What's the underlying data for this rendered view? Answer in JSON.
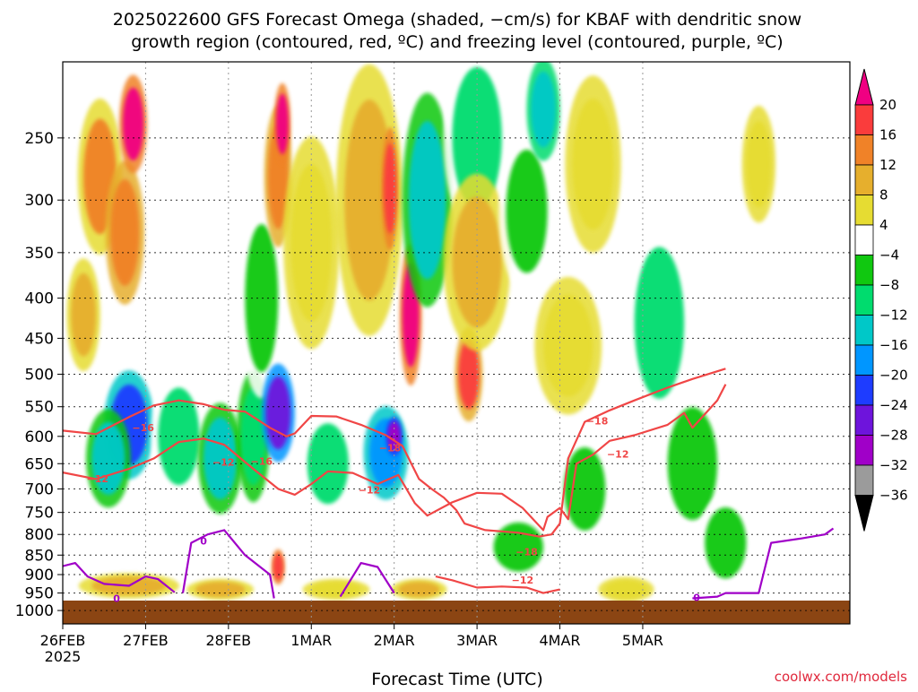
{
  "title_line1": "2025022600 GFS Forecast Omega (shaded, −cm/s) for KBAF with dendritic snow",
  "title_line2": "growth region (contoured, red, ºC) and freezing level (contoured, purple, ºC)",
  "credit": "coolwx.com/models",
  "chart_data": {
    "type": "heatmap",
    "xlabel": "Forecast Time (UTC)",
    "ylabel": "",
    "y_scale": "pressure (log), inverted",
    "ylim": [
      1040,
      200
    ],
    "xlim": [
      0,
      9.5
    ],
    "grid": true,
    "x_ticks": [
      {
        "value": 0,
        "label": "26FEB",
        "sublabel": "2025"
      },
      {
        "value": 1,
        "label": "27FEB"
      },
      {
        "value": 2,
        "label": "28FEB"
      },
      {
        "value": 3,
        "label": "1MAR"
      },
      {
        "value": 4,
        "label": "2MAR"
      },
      {
        "value": 5,
        "label": "3MAR"
      },
      {
        "value": 6,
        "label": "4MAR"
      },
      {
        "value": 7,
        "label": "5MAR"
      }
    ],
    "y_ticks": [
      250,
      300,
      350,
      400,
      450,
      500,
      550,
      600,
      650,
      700,
      750,
      800,
      850,
      900,
      950,
      1000
    ],
    "colorbar": {
      "levels": [
        -36,
        -32,
        -28,
        -24,
        -20,
        -16,
        -12,
        -8,
        -4,
        4,
        8,
        12,
        16,
        20
      ],
      "labels": [
        "20",
        "16",
        "12",
        "8",
        "4",
        "−4",
        "−8",
        "−12",
        "−16",
        "−20",
        "−24",
        "−28",
        "−32",
        "−36"
      ],
      "colors": [
        "#9b9b9b",
        "#a000c8",
        "#6e14dc",
        "#1e3cff",
        "#0096ff",
        "#00c8c8",
        "#00dc6e",
        "#10c810",
        "#ffffff",
        "#e6dc32",
        "#e6af2d",
        "#f08228",
        "#fa3c3c",
        "#f00082"
      ],
      "bottom_color": "#000000"
    },
    "omega_cells": [
      {
        "x": 0.45,
        "y": 280,
        "v": 12,
        "wx": 0.4,
        "wy": 110
      },
      {
        "x": 0.75,
        "y": 330,
        "v": 14,
        "wx": 0.35,
        "wy": 120
      },
      {
        "x": 0.85,
        "y": 240,
        "v": 20,
        "wx": 0.25,
        "wy": 60
      },
      {
        "x": 0.25,
        "y": 420,
        "v": 10,
        "wx": 0.3,
        "wy": 120
      },
      {
        "x": 0.8,
        "y": 580,
        "v": -22,
        "wx": 0.45,
        "wy": 160
      },
      {
        "x": 0.55,
        "y": 640,
        "v": -14,
        "wx": 0.4,
        "wy": 160
      },
      {
        "x": 1.4,
        "y": 600,
        "v": -10,
        "wx": 0.5,
        "wy": 200
      },
      {
        "x": 1.9,
        "y": 640,
        "v": -14,
        "wx": 0.4,
        "wy": 180
      },
      {
        "x": 2.3,
        "y": 600,
        "v": -12,
        "wx": 0.3,
        "wy": 200
      },
      {
        "x": 2.4,
        "y": 400,
        "v": -6,
        "wx": 0.4,
        "wy": 200
      },
      {
        "x": 2.6,
        "y": 560,
        "v": -26,
        "wx": 0.3,
        "wy": 140
      },
      {
        "x": 2.6,
        "y": 280,
        "v": 14,
        "wx": 0.25,
        "wy": 100
      },
      {
        "x": 2.65,
        "y": 240,
        "v": 20,
        "wx": 0.15,
        "wy": 50
      },
      {
        "x": 2.6,
        "y": 880,
        "v": 18,
        "wx": 0.12,
        "wy": 80
      },
      {
        "x": 3.2,
        "y": 650,
        "v": -10,
        "wx": 0.5,
        "wy": 180
      },
      {
        "x": 3.0,
        "y": 340,
        "v": 6,
        "wx": 0.5,
        "wy": 180
      },
      {
        "x": 3.7,
        "y": 300,
        "v": 10,
        "wx": 0.6,
        "wy": 200
      },
      {
        "x": 3.9,
        "y": 630,
        "v": -20,
        "wx": 0.4,
        "wy": 150
      },
      {
        "x": 4.0,
        "y": 600,
        "v": -30,
        "wx": 0.15,
        "wy": 60
      },
      {
        "x": 3.95,
        "y": 290,
        "v": 18,
        "wx": 0.15,
        "wy": 90
      },
      {
        "x": 4.2,
        "y": 420,
        "v": 20,
        "wx": 0.2,
        "wy": 150
      },
      {
        "x": 4.4,
        "y": 300,
        "v": -14,
        "wx": 0.45,
        "wy": 160
      },
      {
        "x": 5.0,
        "y": 250,
        "v": -10,
        "wx": 0.6,
        "wy": 120
      },
      {
        "x": 4.9,
        "y": 500,
        "v": 16,
        "wx": 0.25,
        "wy": 120
      },
      {
        "x": 5.0,
        "y": 360,
        "v": 8,
        "wx": 0.6,
        "wy": 160
      },
      {
        "x": 5.6,
        "y": 310,
        "v": -8,
        "wx": 0.5,
        "wy": 130
      },
      {
        "x": 5.8,
        "y": 230,
        "v": -16,
        "wx": 0.3,
        "wy": 60
      },
      {
        "x": 6.1,
        "y": 460,
        "v": 6,
        "wx": 0.6,
        "wy": 160
      },
      {
        "x": 6.4,
        "y": 270,
        "v": 6,
        "wx": 0.5,
        "wy": 120
      },
      {
        "x": 6.3,
        "y": 700,
        "v": -8,
        "wx": 0.5,
        "wy": 200
      },
      {
        "x": 7.2,
        "y": 430,
        "v": -10,
        "wx": 0.6,
        "wy": 220
      },
      {
        "x": 7.6,
        "y": 650,
        "v": -8,
        "wx": 0.6,
        "wy": 250
      },
      {
        "x": 6.8,
        "y": 940,
        "v": 6,
        "wx": 0.5,
        "wy": 60
      },
      {
        "x": 8.0,
        "y": 820,
        "v": -6,
        "wx": 0.5,
        "wy": 200
      },
      {
        "x": 0.8,
        "y": 930,
        "v": 10,
        "wx": 0.9,
        "wy": 60
      },
      {
        "x": 1.9,
        "y": 940,
        "v": 8,
        "wx": 0.6,
        "wy": 50
      },
      {
        "x": 3.3,
        "y": 940,
        "v": 6,
        "wx": 0.6,
        "wy": 50
      },
      {
        "x": 4.3,
        "y": 940,
        "v": 8,
        "wx": 0.5,
        "wy": 50
      },
      {
        "x": 5.5,
        "y": 830,
        "v": -8,
        "wx": 0.6,
        "wy": 140
      },
      {
        "x": 8.4,
        "y": 270,
        "v": 6,
        "wx": 0.3,
        "wy": 80
      }
    ],
    "contours": [
      {
        "name": "",
        "color": "#f04646",
        "level": -12,
        "points": [
          [
            0,
            667
          ],
          [
            0.4,
            680
          ],
          [
            0.8,
            660
          ],
          [
            1.1,
            640
          ],
          [
            1.4,
            610
          ],
          [
            1.7,
            604
          ],
          [
            1.95,
            615
          ],
          [
            2.3,
            660
          ],
          [
            2.6,
            700
          ],
          [
            2.8,
            712
          ],
          [
            3.0,
            690
          ],
          [
            3.2,
            665
          ],
          [
            3.5,
            668
          ],
          [
            3.8,
            690
          ],
          [
            4.05,
            672
          ],
          [
            4.25,
            730
          ],
          [
            4.4,
            757
          ],
          [
            4.7,
            728
          ],
          [
            5.0,
            708
          ],
          [
            5.3,
            710
          ],
          [
            5.55,
            740
          ],
          [
            5.8,
            790
          ],
          [
            5.85,
            760
          ],
          [
            6.0,
            740
          ],
          [
            6.1,
            765
          ],
          [
            6.2,
            650
          ],
          [
            6.4,
            633
          ],
          [
            6.6,
            608
          ],
          [
            6.9,
            598
          ],
          [
            7.3,
            580
          ],
          [
            7.5,
            560
          ],
          [
            7.6,
            585
          ],
          [
            7.9,
            540
          ],
          [
            8.0,
            515
          ]
        ]
      },
      {
        "name": "",
        "color": "#f04646",
        "level": -18,
        "points": [
          [
            0,
            590
          ],
          [
            0.4,
            596
          ],
          [
            0.8,
            567
          ],
          [
            1.1,
            548
          ],
          [
            1.4,
            540
          ],
          [
            1.7,
            546
          ],
          [
            1.95,
            555
          ],
          [
            2.2,
            558
          ],
          [
            2.5,
            585
          ],
          [
            2.7,
            600
          ],
          [
            2.8,
            595
          ],
          [
            3.0,
            565
          ],
          [
            3.3,
            566
          ],
          [
            3.6,
            580
          ],
          [
            3.9,
            598
          ],
          [
            4.1,
            617
          ],
          [
            4.3,
            680
          ],
          [
            4.45,
            700
          ],
          [
            4.6,
            718
          ],
          [
            4.75,
            745
          ],
          [
            4.85,
            775
          ],
          [
            5.1,
            790
          ],
          [
            5.5,
            796
          ],
          [
            5.75,
            805
          ],
          [
            5.9,
            800
          ],
          [
            6.0,
            775
          ],
          [
            6.1,
            640
          ],
          [
            6.3,
            575
          ],
          [
            6.6,
            556
          ],
          [
            6.9,
            540
          ],
          [
            7.3,
            520
          ],
          [
            7.6,
            507
          ],
          [
            8.0,
            492
          ]
        ]
      },
      {
        "name": "",
        "color": "#f04646",
        "level": -12,
        "points": [
          [
            4.5,
            905
          ],
          [
            4.7,
            915
          ],
          [
            5.0,
            935
          ],
          [
            5.3,
            932
          ],
          [
            5.6,
            935
          ],
          [
            5.8,
            950
          ],
          [
            6.0,
            940
          ]
        ]
      },
      {
        "name": "",
        "color": "#a000c8",
        "level": 0,
        "points": [
          [
            0,
            878
          ],
          [
            0.15,
            870
          ],
          [
            0.3,
            905
          ],
          [
            0.5,
            925
          ],
          [
            0.8,
            930
          ],
          [
            1.0,
            905
          ],
          [
            1.15,
            912
          ],
          [
            1.35,
            948
          ]
        ]
      },
      {
        "name": "",
        "color": "#a000c8",
        "level": 0,
        "points": [
          [
            1.45,
            950
          ],
          [
            1.55,
            820
          ],
          [
            1.75,
            800
          ],
          [
            1.95,
            790
          ],
          [
            2.2,
            850
          ],
          [
            2.5,
            900
          ],
          [
            2.55,
            965
          ]
        ]
      },
      {
        "name": "",
        "color": "#a000c8",
        "level": 0,
        "points": [
          [
            3.35,
            960
          ],
          [
            3.6,
            870
          ],
          [
            3.8,
            880
          ],
          [
            4.0,
            950
          ]
        ]
      },
      {
        "name": "",
        "color": "#a000c8",
        "level": 0,
        "points": [
          [
            7.6,
            965
          ],
          [
            7.9,
            960
          ],
          [
            8.0,
            950
          ],
          [
            8.4,
            950
          ],
          [
            8.55,
            820
          ],
          [
            8.9,
            810
          ],
          [
            9.2,
            800
          ],
          [
            9.3,
            786
          ]
        ]
      }
    ],
    "contour_labels": [
      {
        "text": "−16",
        "x": 0.97,
        "y": 585
      },
      {
        "text": "−12",
        "x": 0.42,
        "y": 679
      },
      {
        "text": "−12",
        "x": 1.94,
        "y": 647
      },
      {
        "text": "−16",
        "x": 2.4,
        "y": 645
      },
      {
        "text": "−18",
        "x": 3.95,
        "y": 620
      },
      {
        "text": "−12",
        "x": 3.7,
        "y": 702
      },
      {
        "text": "−18",
        "x": 6.45,
        "y": 573
      },
      {
        "text": "−12",
        "x": 6.7,
        "y": 632
      },
      {
        "text": "−18",
        "x": 5.6,
        "y": 842
      },
      {
        "text": "−12",
        "x": 5.55,
        "y": 914
      },
      {
        "text": "0",
        "x": 0.65,
        "y": 965
      },
      {
        "text": "0",
        "x": 1.7,
        "y": 815
      },
      {
        "text": "0",
        "x": 7.65,
        "y": 962
      }
    ]
  }
}
